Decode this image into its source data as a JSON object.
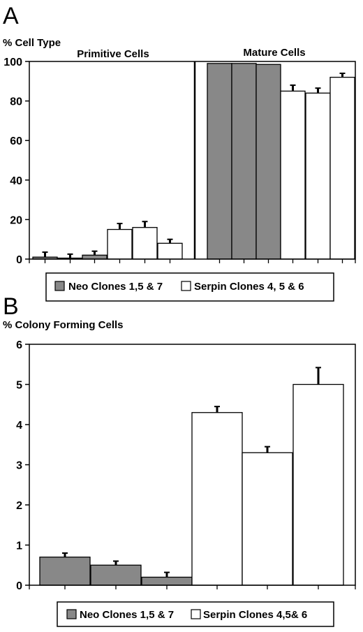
{
  "colors": {
    "neo": "#888888",
    "serpin": "#ffffff",
    "axis": "#000000"
  },
  "chart_data": [
    {
      "panel": "A",
      "type": "bar",
      "ylabel": "% Cell Type",
      "ylim": [
        0,
        100
      ],
      "yticks": [
        "0",
        "20",
        "40",
        "60",
        "80",
        "100"
      ],
      "groups": [
        {
          "label": "Primitive Cells",
          "bars": [
            {
              "series": "neo",
              "value": 1,
              "error": 2.5
            },
            {
              "series": "neo",
              "value": 0.5,
              "error": 2
            },
            {
              "series": "neo",
              "value": 2,
              "error": 2
            },
            {
              "series": "serpin",
              "value": 15,
              "error": 3
            },
            {
              "series": "serpin",
              "value": 16,
              "error": 3
            },
            {
              "series": "serpin",
              "value": 8,
              "error": 2
            }
          ]
        },
        {
          "label": "Mature Cells",
          "bars": [
            {
              "series": "neo",
              "value": 99,
              "error": 0
            },
            {
              "series": "neo",
              "value": 99,
              "error": 0
            },
            {
              "series": "neo",
              "value": 98.5,
              "error": 0
            },
            {
              "series": "serpin",
              "value": 85,
              "error": 3
            },
            {
              "series": "serpin",
              "value": 84,
              "error": 2.5
            },
            {
              "series": "serpin",
              "value": 92,
              "error": 2
            }
          ]
        }
      ],
      "legend": [
        {
          "series": "neo",
          "label": "Neo Clones 1,5 & 7"
        },
        {
          "series": "serpin",
          "label": "Serpin Clones 4, 5 & 6"
        }
      ]
    },
    {
      "panel": "B",
      "type": "bar",
      "ylabel": "% Colony Forming Cells",
      "ylim": [
        0,
        6
      ],
      "yticks": [
        "0",
        "1",
        "2",
        "3",
        "4",
        "5",
        "6"
      ],
      "bars": [
        {
          "series": "neo",
          "value": 0.7,
          "error": 0.1
        },
        {
          "series": "neo",
          "value": 0.5,
          "error": 0.1
        },
        {
          "series": "neo",
          "value": 0.2,
          "error": 0.12
        },
        {
          "series": "serpin",
          "value": 4.3,
          "error": 0.15
        },
        {
          "series": "serpin",
          "value": 3.3,
          "error": 0.15
        },
        {
          "series": "serpin",
          "value": 5.0,
          "error": 0.42
        }
      ],
      "legend": [
        {
          "series": "neo",
          "label": "Neo Clones 1,5 & 7"
        },
        {
          "series": "serpin",
          "label": "Serpin Clones 4,5& 6"
        }
      ]
    }
  ]
}
